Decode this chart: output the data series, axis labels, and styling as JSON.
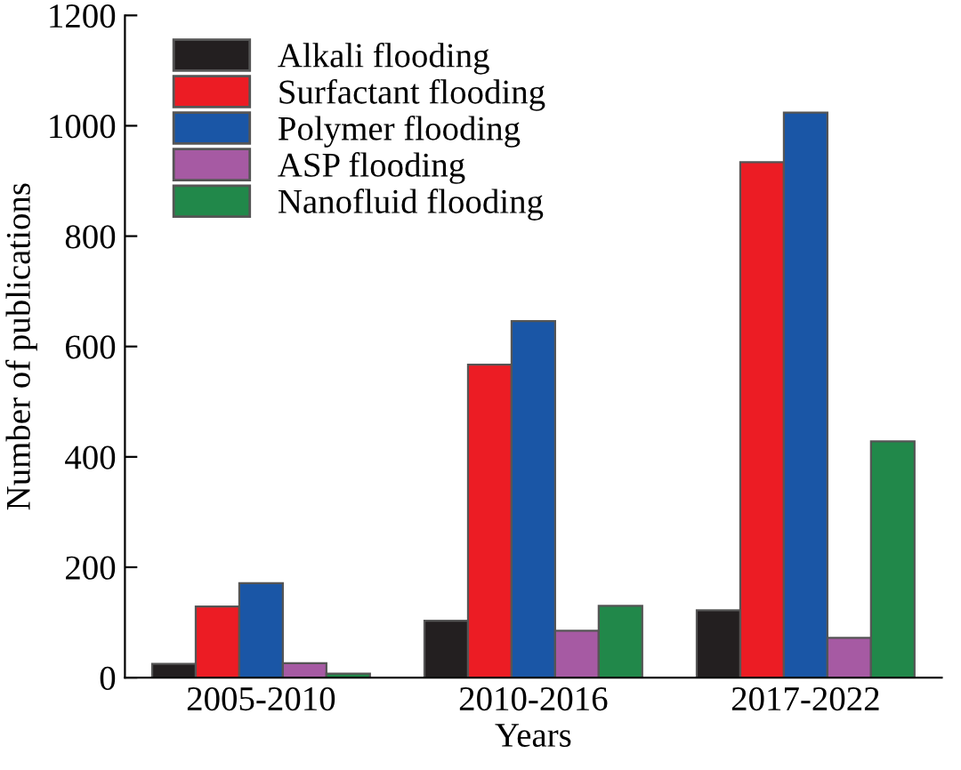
{
  "chart_data": {
    "type": "bar",
    "xlabel": "Years",
    "ylabel": "Number of publications",
    "categories": [
      "2005-2010",
      "2010-2016",
      "2017-2022"
    ],
    "ylim": [
      0,
      1200
    ],
    "yticks": [
      0,
      200,
      400,
      600,
      800,
      1000,
      1200
    ],
    "grid": false,
    "legend": "top left",
    "series": [
      {
        "name": "Alkali flooding",
        "color": "#231f20",
        "values": [
          25,
          103,
          122
        ]
      },
      {
        "name": "Surfactant flooding",
        "color": "#ec1c24",
        "values": [
          129,
          567,
          934
        ]
      },
      {
        "name": "Polymer flooding",
        "color": "#1a56a6",
        "values": [
          171,
          646,
          1024
        ]
      },
      {
        "name": "ASP flooding",
        "color": "#a65aa3",
        "values": [
          26,
          85,
          72
        ]
      },
      {
        "name": "Nanofluid flooding",
        "color": "#21884a",
        "values": [
          7,
          130,
          428
        ]
      }
    ]
  }
}
